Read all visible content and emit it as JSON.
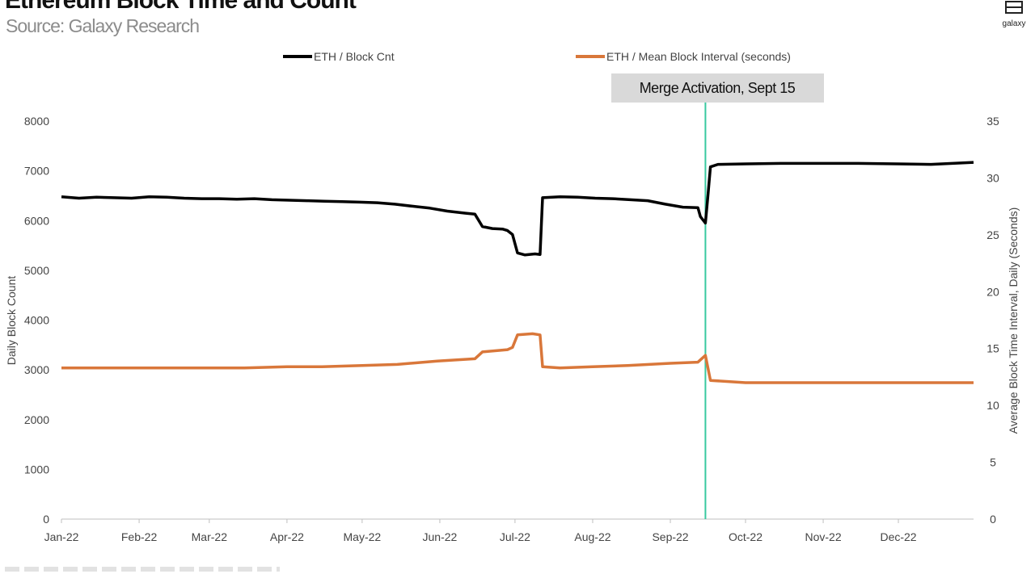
{
  "header": {
    "title": "Ethereum Block Time and Count",
    "subtitle": "Source: Galaxy Research",
    "logo_text": "galaxy"
  },
  "colors": {
    "block_count": "#000000",
    "block_interval": "#d9773a",
    "merge_line": "#39c9a0",
    "annotation_bg": "#d9d9d9"
  },
  "chart_data": {
    "type": "line",
    "title": "Ethereum Block Time and Count",
    "subtitle": "Source: Galaxy Research",
    "x_ticks": [
      "Jan-22",
      "Feb-22",
      "Mar-22",
      "Apr-22",
      "May-22",
      "Jun-22",
      "Jul-22",
      "Aug-22",
      "Sep-22",
      "Oct-22",
      "Nov-22",
      "Dec-22"
    ],
    "y_left": {
      "label": "Daily Block Count",
      "range": [
        0,
        8000
      ],
      "ticks": [
        "0",
        "1000",
        "2000",
        "3000",
        "4000",
        "5000",
        "6000",
        "7000",
        "8000"
      ]
    },
    "y_right": {
      "label": "Average Block Time Interval, Daily (Seconds)",
      "range": [
        0,
        35
      ],
      "ticks": [
        "0",
        "5",
        "10",
        "15",
        "20",
        "25",
        "30",
        "35"
      ]
    },
    "legend": {
      "placement": "top"
    },
    "annotation": {
      "label": "Merge Activation, Sept 15",
      "date": "2022-09-15"
    },
    "series": [
      {
        "name": "ETH / Block Cnt",
        "axis": "left",
        "color": "#000000",
        "points": [
          [
            "2022-01-01",
            6480
          ],
          [
            "2022-01-08",
            6450
          ],
          [
            "2022-01-15",
            6470
          ],
          [
            "2022-01-22",
            6460
          ],
          [
            "2022-01-29",
            6450
          ],
          [
            "2022-02-05",
            6480
          ],
          [
            "2022-02-12",
            6470
          ],
          [
            "2022-02-19",
            6450
          ],
          [
            "2022-02-26",
            6440
          ],
          [
            "2022-03-05",
            6440
          ],
          [
            "2022-03-12",
            6430
          ],
          [
            "2022-03-19",
            6440
          ],
          [
            "2022-03-26",
            6420
          ],
          [
            "2022-04-02",
            6410
          ],
          [
            "2022-04-09",
            6400
          ],
          [
            "2022-04-16",
            6390
          ],
          [
            "2022-04-23",
            6380
          ],
          [
            "2022-04-30",
            6370
          ],
          [
            "2022-05-07",
            6360
          ],
          [
            "2022-05-14",
            6330
          ],
          [
            "2022-05-21",
            6290
          ],
          [
            "2022-05-28",
            6250
          ],
          [
            "2022-06-04",
            6190
          ],
          [
            "2022-06-11",
            6150
          ],
          [
            "2022-06-15",
            6130
          ],
          [
            "2022-06-18",
            5880
          ],
          [
            "2022-06-22",
            5840
          ],
          [
            "2022-06-26",
            5830
          ],
          [
            "2022-06-28",
            5800
          ],
          [
            "2022-06-30",
            5720
          ],
          [
            "2022-07-02",
            5350
          ],
          [
            "2022-07-05",
            5310
          ],
          [
            "2022-07-09",
            5330
          ],
          [
            "2022-07-11",
            5320
          ],
          [
            "2022-07-12",
            6460
          ],
          [
            "2022-07-19",
            6480
          ],
          [
            "2022-07-26",
            6470
          ],
          [
            "2022-08-02",
            6450
          ],
          [
            "2022-08-09",
            6440
          ],
          [
            "2022-08-16",
            6420
          ],
          [
            "2022-08-23",
            6400
          ],
          [
            "2022-08-30",
            6330
          ],
          [
            "2022-09-06",
            6270
          ],
          [
            "2022-09-12",
            6260
          ],
          [
            "2022-09-13",
            6080
          ],
          [
            "2022-09-15",
            5950
          ],
          [
            "2022-09-16",
            6500
          ],
          [
            "2022-09-17",
            7080
          ],
          [
            "2022-09-20",
            7130
          ],
          [
            "2022-10-01",
            7140
          ],
          [
            "2022-10-15",
            7150
          ],
          [
            "2022-11-01",
            7150
          ],
          [
            "2022-11-15",
            7150
          ],
          [
            "2022-12-01",
            7140
          ],
          [
            "2022-12-14",
            7130
          ],
          [
            "2022-12-31",
            7170
          ]
        ]
      },
      {
        "name": "ETH / Mean Block Interval (seconds)",
        "axis": "right",
        "color": "#d9773a",
        "points": [
          [
            "2022-01-01",
            13.3
          ],
          [
            "2022-01-15",
            13.3
          ],
          [
            "2022-02-01",
            13.3
          ],
          [
            "2022-02-15",
            13.3
          ],
          [
            "2022-03-01",
            13.3
          ],
          [
            "2022-03-15",
            13.3
          ],
          [
            "2022-04-01",
            13.4
          ],
          [
            "2022-04-15",
            13.4
          ],
          [
            "2022-05-01",
            13.5
          ],
          [
            "2022-05-15",
            13.6
          ],
          [
            "2022-05-31",
            13.9
          ],
          [
            "2022-06-15",
            14.1
          ],
          [
            "2022-06-18",
            14.7
          ],
          [
            "2022-06-28",
            14.9
          ],
          [
            "2022-06-30",
            15.1
          ],
          [
            "2022-07-02",
            16.2
          ],
          [
            "2022-07-08",
            16.3
          ],
          [
            "2022-07-11",
            16.2
          ],
          [
            "2022-07-12",
            13.4
          ],
          [
            "2022-07-19",
            13.3
          ],
          [
            "2022-08-01",
            13.4
          ],
          [
            "2022-08-15",
            13.5
          ],
          [
            "2022-09-01",
            13.7
          ],
          [
            "2022-09-12",
            13.8
          ],
          [
            "2022-09-15",
            14.4
          ],
          [
            "2022-09-17",
            12.2
          ],
          [
            "2022-10-01",
            12.0
          ],
          [
            "2022-11-01",
            12.0
          ],
          [
            "2022-12-01",
            12.0
          ],
          [
            "2022-12-31",
            12.0
          ]
        ]
      }
    ]
  }
}
